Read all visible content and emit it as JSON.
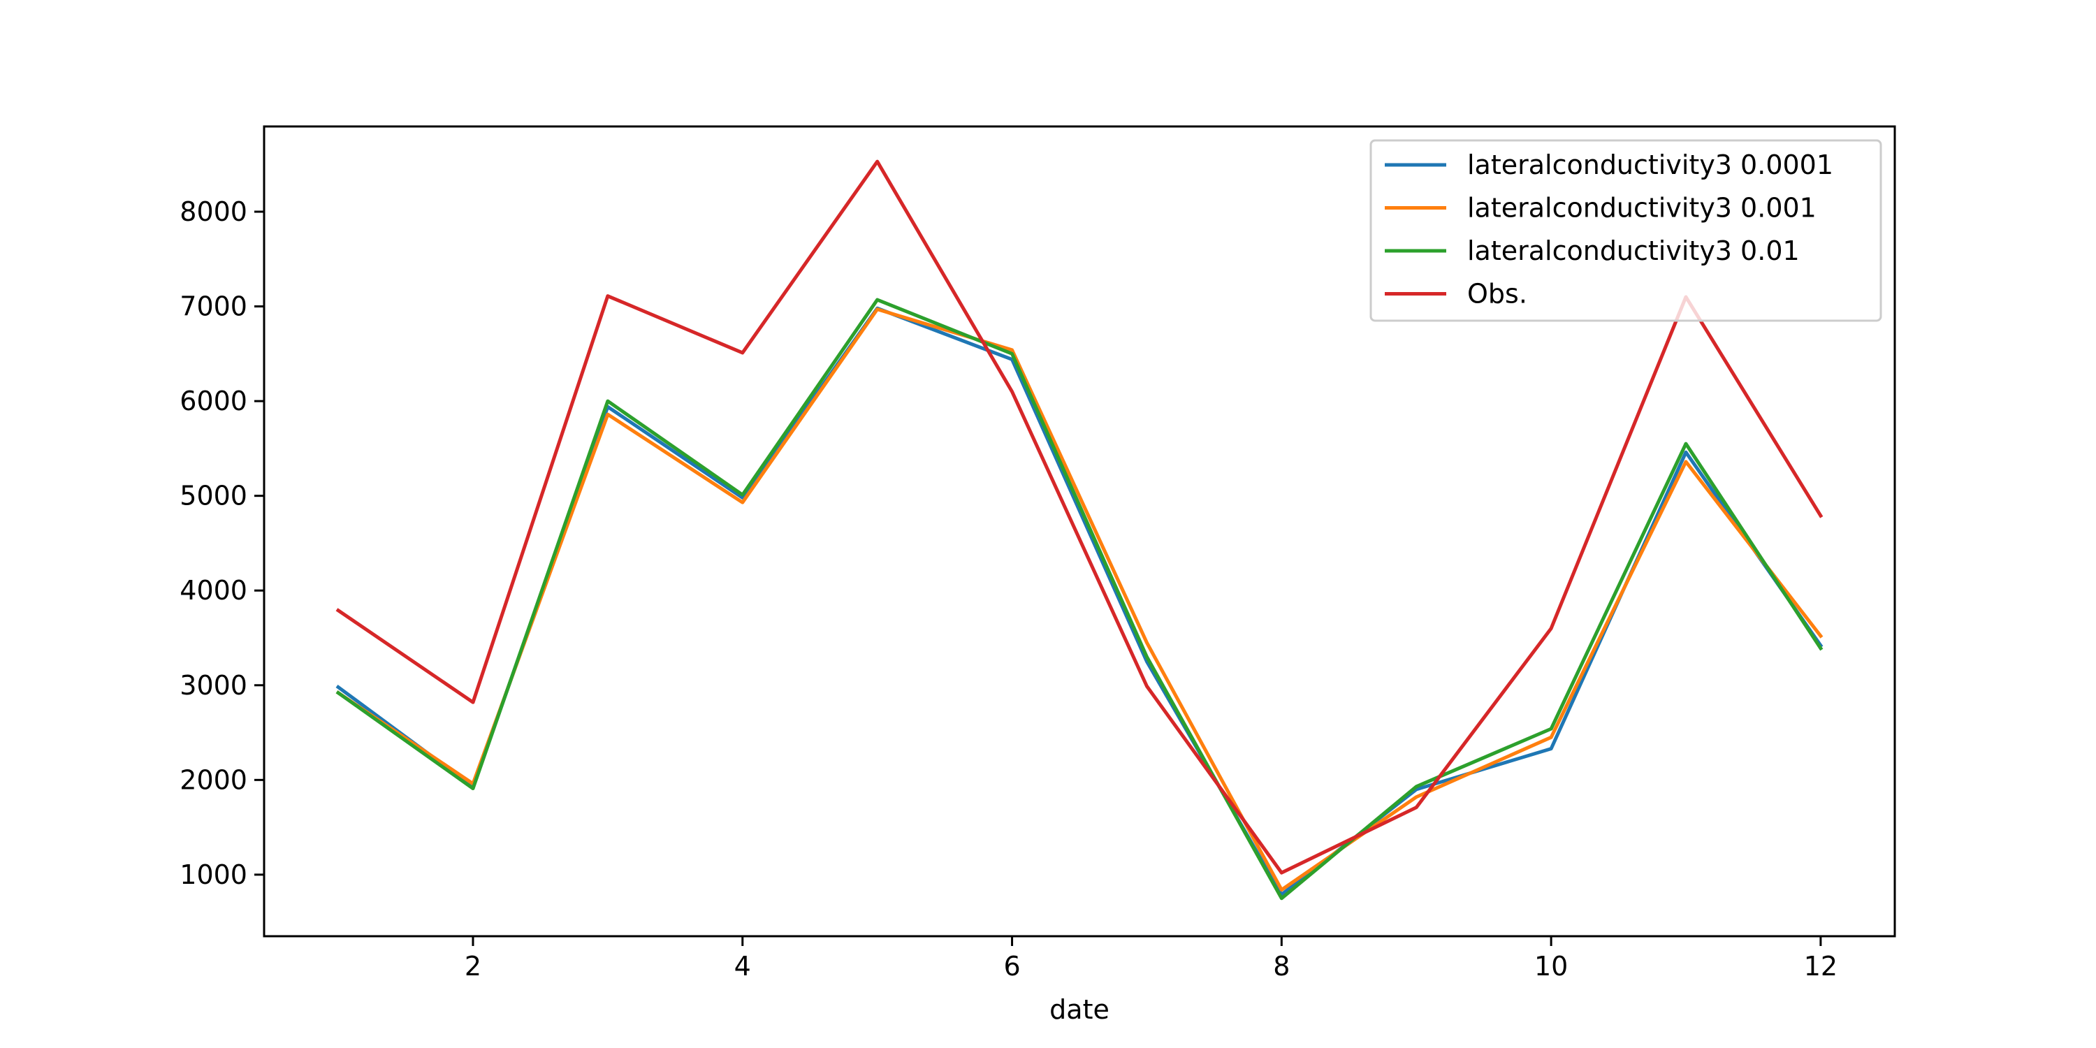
{
  "chart_data": {
    "type": "line",
    "title": "",
    "xlabel": "date",
    "ylabel": "",
    "x": [
      1,
      2,
      3,
      4,
      5,
      6,
      7,
      8,
      9,
      10,
      11,
      12
    ],
    "xlim": [
      0.45,
      12.55
    ],
    "ylim": [
      350,
      8900
    ],
    "x_ticks": [
      2,
      4,
      6,
      8,
      10,
      12
    ],
    "y_ticks": [
      1000,
      2000,
      3000,
      4000,
      5000,
      6000,
      7000,
      8000
    ],
    "grid": false,
    "legend_position": "top-right",
    "series": [
      {
        "name": "lateralconductivity3 0.0001",
        "color": "#1f77b4",
        "values": [
          2980,
          1930,
          5940,
          4980,
          6980,
          6440,
          3250,
          790,
          1900,
          2330,
          5460,
          3420
        ]
      },
      {
        "name": "lateralconductivity3 0.001",
        "color": "#ff7f0e",
        "values": [
          2920,
          1960,
          5860,
          4930,
          6970,
          6540,
          3450,
          840,
          1820,
          2450,
          5360,
          3520
        ]
      },
      {
        "name": "lateralconductivity3 0.01",
        "color": "#2ca02c",
        "values": [
          2920,
          1910,
          6000,
          5010,
          7070,
          6500,
          3300,
          750,
          1930,
          2540,
          5550,
          3390
        ]
      },
      {
        "name": "Obs.",
        "color": "#d62728",
        "values": [
          3790,
          2820,
          7110,
          6510,
          8530,
          6100,
          2990,
          1020,
          1710,
          3600,
          7100,
          4790
        ]
      }
    ]
  }
}
